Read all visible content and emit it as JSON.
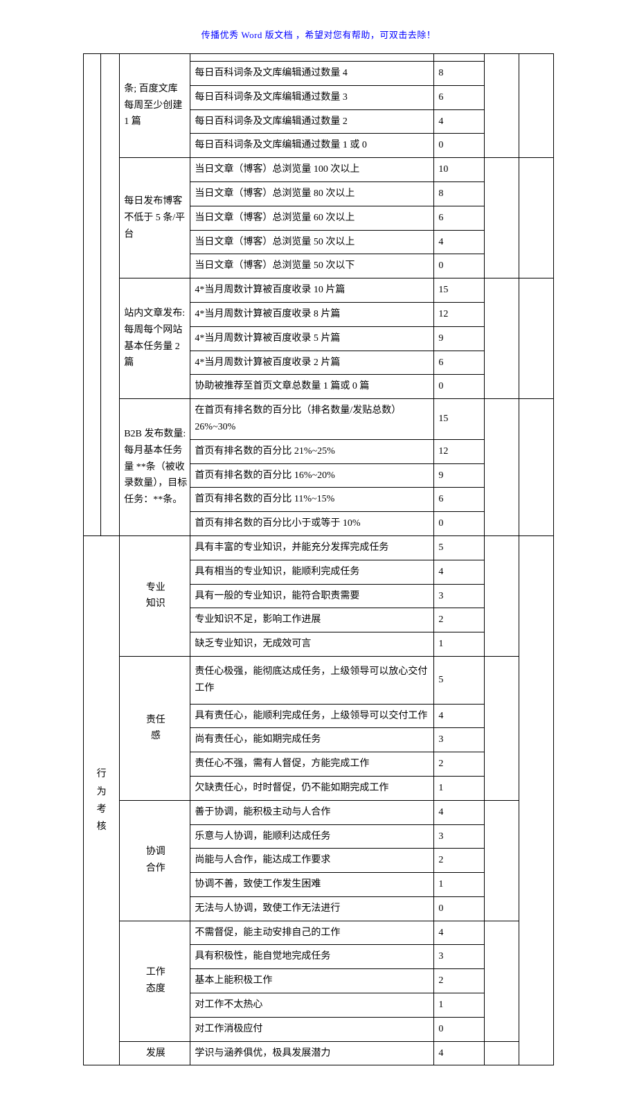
{
  "header": "传播优秀 Word 版文档 ，希望对您有帮助，可双击去除！",
  "sections": {
    "s1": {
      "label_cont": "条; 百度文库 每周至少创建 1 篇",
      "rows": [
        {
          "desc": "每日百科词条及文库编辑通过数量 4",
          "score": "8"
        },
        {
          "desc": "每日百科词条及文库编辑通过数量 3",
          "score": "6"
        },
        {
          "desc": "每日百科词条及文库编辑通过数量 2",
          "score": "4"
        },
        {
          "desc": "每日百科词条及文库编辑通过数量 1 或 0",
          "score": "0"
        }
      ]
    },
    "s2": {
      "label": "每日发布博客不低于 5 条/平台",
      "rows": [
        {
          "desc": "当日文章（博客）总浏览量 100 次以上",
          "score": "10"
        },
        {
          "desc": "当日文章（博客）总浏览量 80 次以上",
          "score": "8"
        },
        {
          "desc": "当日文章（博客）总浏览量 60 次以上",
          "score": "6"
        },
        {
          "desc": "当日文章（博客）总浏览量 50 次以上",
          "score": "4"
        },
        {
          "desc": "当日文章（博客）总浏览量 50 次以下",
          "score": "0"
        }
      ]
    },
    "s3": {
      "label": "站内文章发布: 每周每个网站基本任务量 2 篇",
      "rows": [
        {
          "desc": "4*当月周数计算被百度收录 10 片篇",
          "score": "15"
        },
        {
          "desc": "4*当月周数计算被百度收录 8 片篇",
          "score": "12"
        },
        {
          "desc": "4*当月周数计算被百度收录 5 片篇",
          "score": "9"
        },
        {
          "desc": "4*当月周数计算被百度收录 2 片篇",
          "score": "6"
        },
        {
          "desc": "协助被推荐至首页文章总数量 1 篇或 0 篇",
          "score": "0"
        }
      ]
    },
    "s4": {
      "label": "B2B 发布数量: 每月基本任务量  **条（被收录数量），目标任务：**条。",
      "rows": [
        {
          "desc": "在首页有排名数的百分比（排名数量/发贴总数）26%~30%",
          "score": "15"
        },
        {
          "desc": "首页有排名数的百分比 21%~25%",
          "score": "12"
        },
        {
          "desc": "首页有排名数的百分比 16%~20%",
          "score": "9"
        },
        {
          "desc": "首页有排名数的百分比 11%~15%",
          "score": "6"
        },
        {
          "desc": "首页有排名数的百分比小于或等于 10%",
          "score": "0"
        }
      ]
    },
    "behavior_title": "行为考核",
    "b1": {
      "label": "专业\n知识",
      "rows": [
        {
          "desc": "具有丰富的专业知识，并能充分发挥完成任务",
          "score": "5"
        },
        {
          "desc": "具有相当的专业知识，能顺利完成任务",
          "score": "4"
        },
        {
          "desc": "具有一般的专业知识，能符合职责需要",
          "score": "3"
        },
        {
          "desc": "专业知识不足，影响工作进展",
          "score": "2"
        },
        {
          "desc": "缺乏专业知识，无成效可言",
          "score": "1"
        }
      ]
    },
    "b2": {
      "label": "责任\n感",
      "rows": [
        {
          "desc": "责任心极强，能彻底达成任务，上级领导可以放心交付工作",
          "score": "5"
        },
        {
          "desc": "具有责任心，能顺利完成任务，上级领导可以交付工作",
          "score": "4"
        },
        {
          "desc": "尚有责任心，能如期完成任务",
          "score": "3"
        },
        {
          "desc": "责任心不强，需有人督促，方能完成工作",
          "score": "2"
        },
        {
          "desc": "欠缺责任心，时时督促，仍不能如期完成工作",
          "score": "1"
        }
      ]
    },
    "b3": {
      "label": "协调\n合作",
      "rows": [
        {
          "desc": "善于协调，能积极主动与人合作",
          "score": "4"
        },
        {
          "desc": "乐意与人协调，能顺利达成任务",
          "score": "3"
        },
        {
          "desc": "尚能与人合作，能达成工作要求",
          "score": "2"
        },
        {
          "desc": "协调不善，致使工作发生困难",
          "score": "1"
        },
        {
          "desc": "无法与人协调，致使工作无法进行",
          "score": "0"
        }
      ]
    },
    "b4": {
      "label": "工作\n态度",
      "rows": [
        {
          "desc": "不需督促，能主动安排自己的工作",
          "score": "4"
        },
        {
          "desc": "具有积极性，能自觉地完成任务",
          "score": "3"
        },
        {
          "desc": "基本上能积极工作",
          "score": "2"
        },
        {
          "desc": "对工作不太热心",
          "score": "1"
        },
        {
          "desc": "对工作消极应付",
          "score": "0"
        }
      ]
    },
    "b5": {
      "label": "发展",
      "rows": [
        {
          "desc": "学识与涵养俱优，极具发展潜力",
          "score": "4"
        }
      ]
    }
  }
}
